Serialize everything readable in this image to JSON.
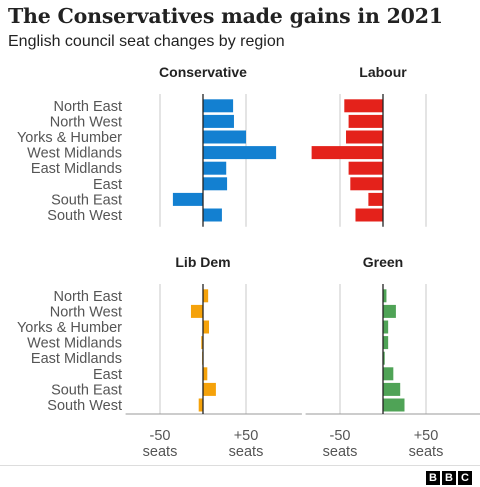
{
  "title": "The Conservatives made gains in 2021",
  "subtitle": "English council seat changes by region",
  "logo": [
    "B",
    "B",
    "C"
  ],
  "colors": {
    "Conservative": "#1380d1",
    "Labour": "#e4221b",
    "Lib Dem": "#f5a20a",
    "Green": "#4fa356"
  },
  "chart_data": [
    {
      "type": "bar",
      "orientation": "horizontal",
      "title": "Conservative",
      "categories": [
        "North East",
        "North West",
        "Yorks & Humber",
        "West Midlands",
        "East Midlands",
        "East",
        "South East",
        "South West"
      ],
      "values": [
        35,
        36,
        50,
        85,
        27,
        28,
        -35,
        22
      ],
      "xlim": [
        -90,
        115
      ],
      "grid": true
    },
    {
      "type": "bar",
      "orientation": "horizontal",
      "title": "Labour",
      "categories": [
        "North East",
        "North West",
        "Yorks & Humber",
        "West Midlands",
        "East Midlands",
        "East",
        "South East",
        "South West"
      ],
      "values": [
        -45,
        -40,
        -43,
        -83,
        -40,
        -38,
        -17,
        -32
      ],
      "xlim": [
        -90,
        115
      ],
      "grid": true
    },
    {
      "type": "bar",
      "orientation": "horizontal",
      "title": "Lib Dem",
      "categories": [
        "North East",
        "North West",
        "Yorks & Humber",
        "West Midlands",
        "East Midlands",
        "East",
        "South East",
        "South West"
      ],
      "values": [
        6,
        -14,
        7,
        -2,
        -1,
        5,
        15,
        -5
      ],
      "xlim": [
        -90,
        115
      ],
      "grid": true
    },
    {
      "type": "bar",
      "orientation": "horizontal",
      "title": "Green",
      "categories": [
        "North East",
        "North West",
        "Yorks & Humber",
        "West Midlands",
        "East Midlands",
        "East",
        "South East",
        "South West"
      ],
      "values": [
        4,
        15,
        6,
        6,
        2,
        12,
        20,
        25
      ],
      "xlim": [
        -90,
        115
      ],
      "grid": true
    }
  ],
  "axis": {
    "tick_values": [
      -50,
      50
    ],
    "tick_labels": [
      "-50",
      "+50"
    ],
    "unit": "seats"
  }
}
